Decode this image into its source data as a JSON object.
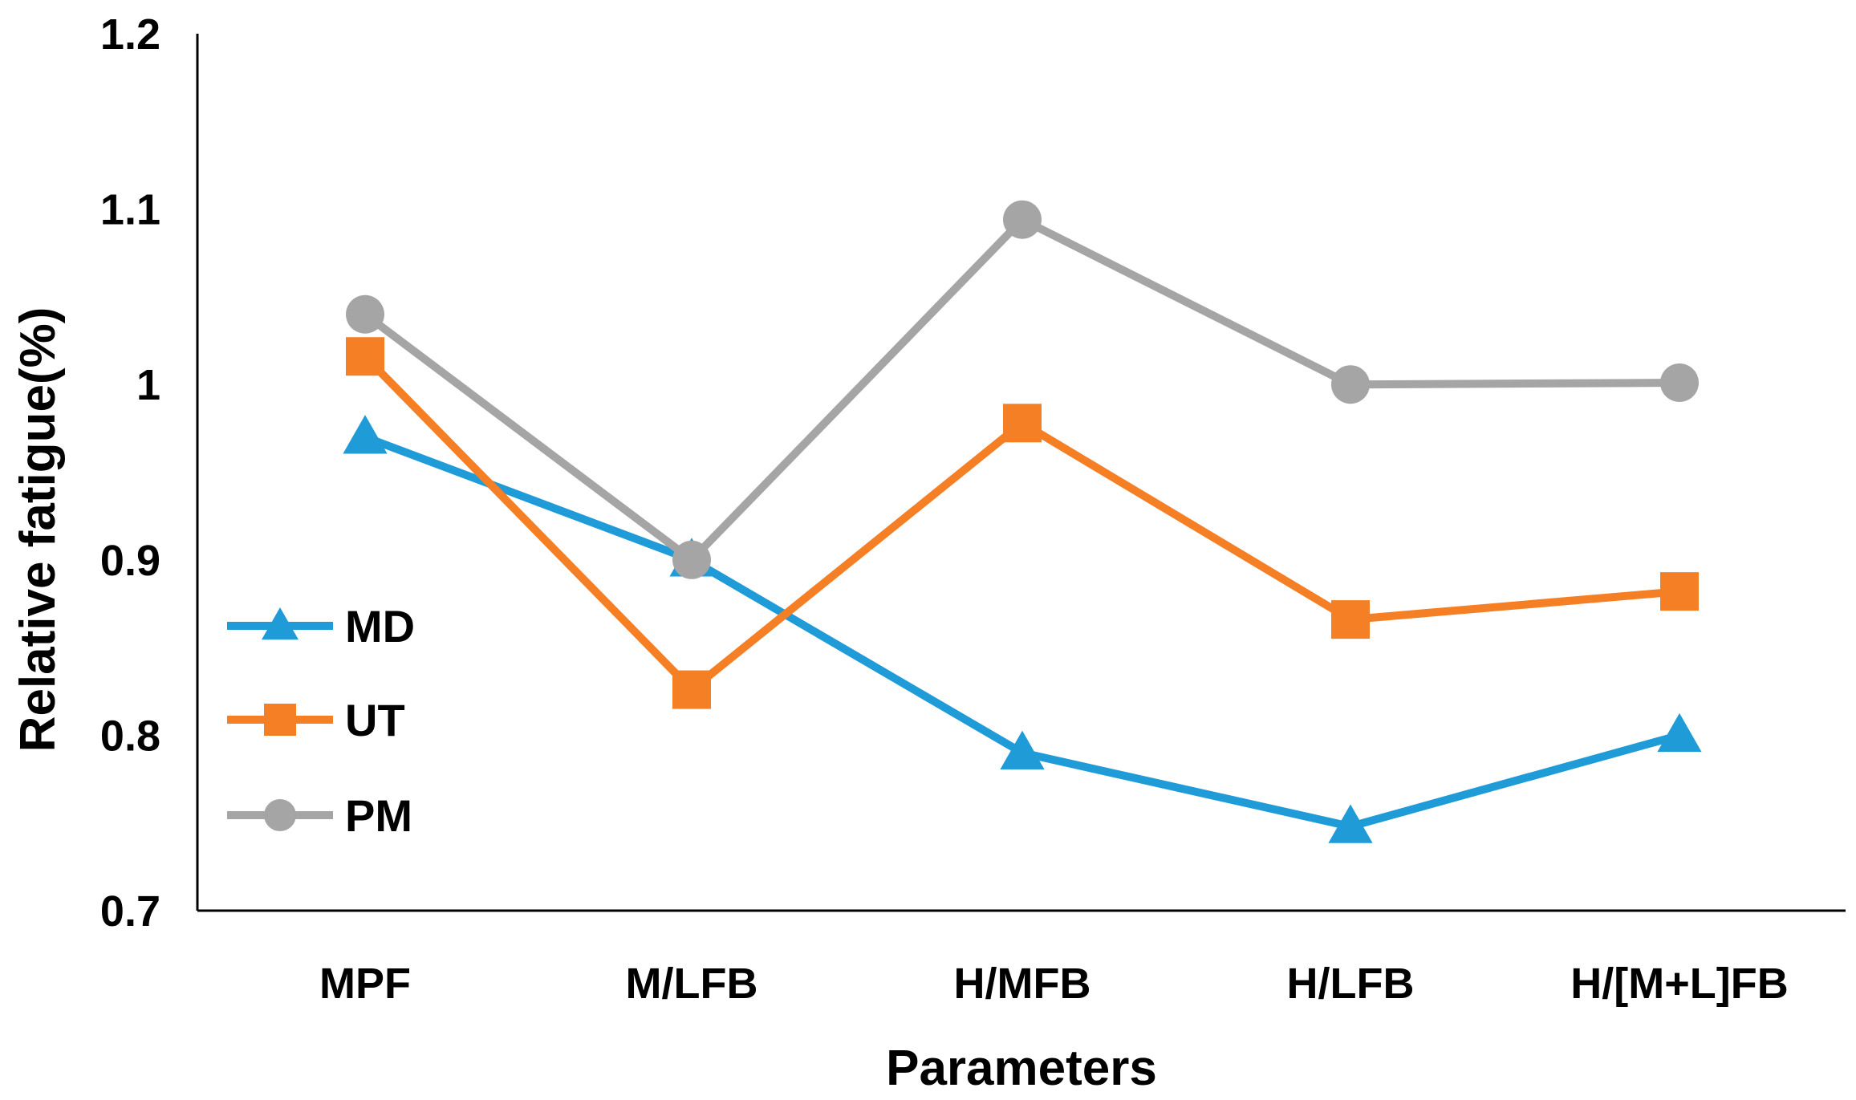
{
  "chart_data": {
    "type": "line",
    "title": "",
    "xlabel": "Parameters",
    "ylabel": "Relative fatigue(%)",
    "categories": [
      "MPF",
      "M/LFB",
      "H/MFB",
      "H/LFB",
      "H/[M+L]FB"
    ],
    "ylim": [
      0.7,
      1.2
    ],
    "yticks": [
      0.7,
      0.8,
      0.9,
      1.0,
      1.1,
      1.2
    ],
    "ytick_labels": [
      "0.7",
      "0.8",
      "0.9",
      "1",
      "1.1",
      "1.2"
    ],
    "grid": false,
    "legend_position": "left-middle",
    "series": [
      {
        "name": "MD",
        "color": "#1f9bd8",
        "marker": "triangle",
        "values": [
          0.97,
          0.9,
          0.79,
          0.748,
          0.8
        ]
      },
      {
        "name": "UT",
        "color": "#f57f25",
        "marker": "square",
        "values": [
          1.016,
          0.826,
          0.978,
          0.866,
          0.882
        ]
      },
      {
        "name": "PM",
        "color": "#a5a5a5",
        "marker": "circle",
        "values": [
          1.04,
          0.9,
          1.094,
          1.0,
          1.001
        ]
      }
    ]
  }
}
